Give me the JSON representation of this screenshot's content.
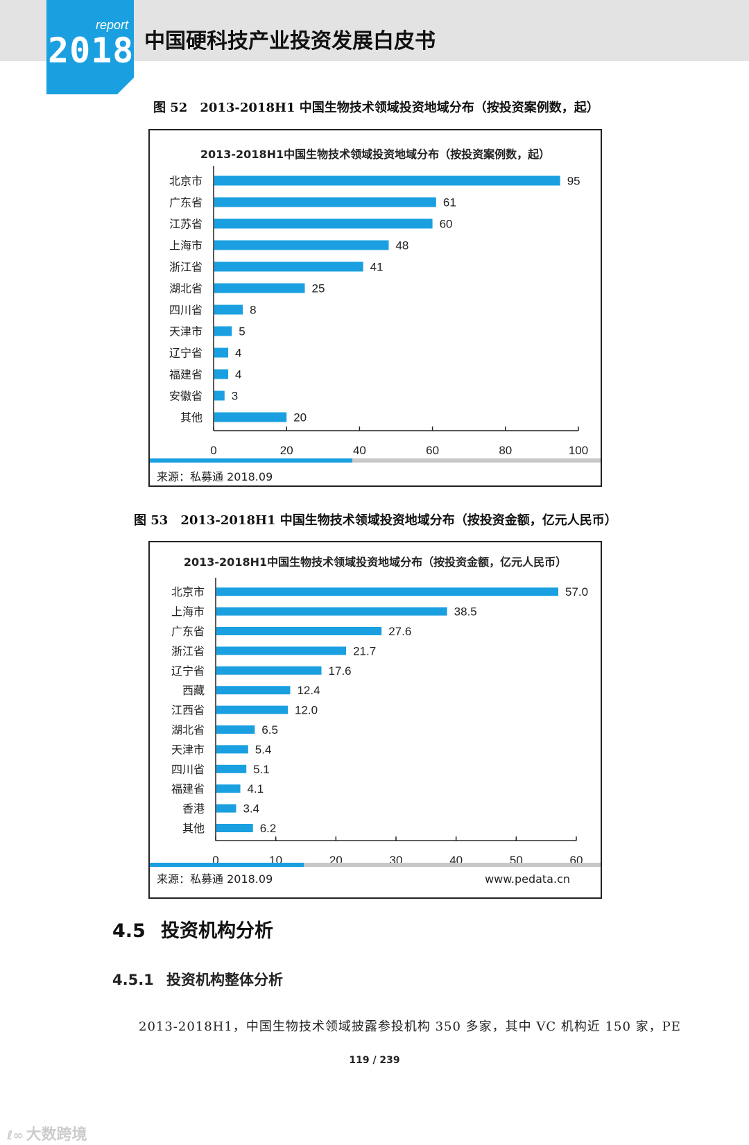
{
  "header": {
    "logo_small": "report",
    "logo_year": "2018",
    "title": "中国硬科技产业投资发展白皮书"
  },
  "figure52": {
    "caption": "图 52　2013-2018H1 中国生物技术领域投资地域分布（按投资案例数，起）",
    "source": "来源：私募通 2018.09"
  },
  "figure53": {
    "caption": "图 53　2013-2018H1 中国生物技术领域投资地域分布（按投资金额，亿元人民币）",
    "source": "来源：私募通 2018.09",
    "website": "www.pedata.cn"
  },
  "chart_data": [
    {
      "type": "bar",
      "orientation": "horizontal",
      "title": "2013-2018H1中国生物技术领域投资地域分布（按投资案例数，起）",
      "categories": [
        "北京市",
        "广东省",
        "江苏省",
        "上海市",
        "浙江省",
        "湖北省",
        "四川省",
        "天津市",
        "辽宁省",
        "福建省",
        "安徽省",
        "其他"
      ],
      "values": [
        95,
        61,
        60,
        48,
        41,
        25,
        8,
        5,
        4,
        4,
        3,
        20
      ],
      "value_labels": [
        "95",
        "61",
        "60",
        "48",
        "41",
        "25",
        "8",
        "5",
        "4",
        "4",
        "3",
        "20"
      ],
      "xlim": [
        0,
        100
      ],
      "xticks": [
        0,
        20,
        40,
        60,
        80,
        100
      ],
      "bar_color": "#1aa0e0",
      "grid": false,
      "legend": "none"
    },
    {
      "type": "bar",
      "orientation": "horizontal",
      "title": "2013-2018H1中国生物技术领域投资地域分布（按投资金额，亿元人民币）",
      "categories": [
        "北京市",
        "上海市",
        "广东省",
        "浙江省",
        "辽宁省",
        "西藏",
        "江西省",
        "湖北省",
        "天津市",
        "四川省",
        "福建省",
        "香港",
        "其他"
      ],
      "values": [
        57.0,
        38.5,
        27.6,
        21.7,
        17.6,
        12.4,
        12.0,
        6.5,
        5.4,
        5.1,
        4.1,
        3.4,
        6.2
      ],
      "value_labels": [
        "57.0",
        "38.5",
        "27.6",
        "21.7",
        "17.6",
        "12.4",
        "12.0",
        "6.5",
        "5.4",
        "5.1",
        "4.1",
        "3.4",
        "6.2"
      ],
      "xlim": [
        0,
        60
      ],
      "xticks": [
        0,
        10,
        20,
        30,
        40,
        50,
        60
      ],
      "bar_color": "#1aa0e0",
      "grid": false,
      "legend": "none"
    }
  ],
  "section": {
    "h2_num": "4.5",
    "h2_title": "投资机构分析",
    "h3_num": "4.5.1",
    "h3_title": "投资机构整体分析",
    "paragraph": "2013-2018H1，中国生物技术领域披露参投机构 350 多家，其中 VC 机构近 150 家，PE"
  },
  "page_number": "119 / 239",
  "watermark": "大数跨境",
  "watermark_mark": "ℓ∞",
  "colors": {
    "accent": "#1aa0e0",
    "header_band": "#e3e3e3",
    "divider_grey": "#c8c8c8"
  }
}
